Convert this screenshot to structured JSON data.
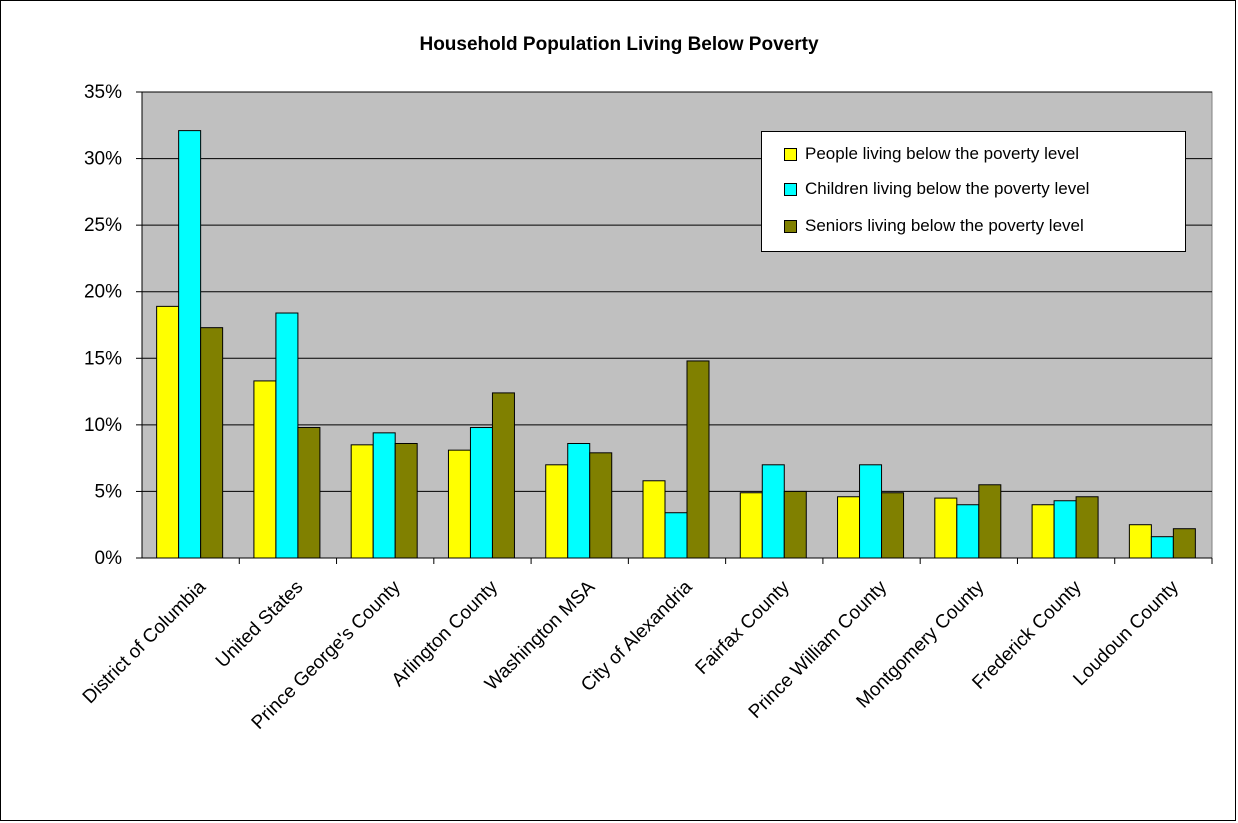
{
  "chart_data": {
    "type": "bar",
    "title": "Household Population Living Below Poverty",
    "xlabel": "",
    "ylabel": "",
    "ylim": [
      0,
      35
    ],
    "yticks": [
      "0%",
      "5%",
      "10%",
      "15%",
      "20%",
      "25%",
      "30%",
      "35%"
    ],
    "grid": true,
    "legend_position": "top-right",
    "categories": [
      "District of Columbia",
      "United States",
      "Prince George's County",
      "Arlington County",
      "Washington MSA",
      "City of Alexandria",
      "Fairfax County",
      "Prince William County",
      "Montgomery County",
      "Frederick County",
      "Loudoun County"
    ],
    "series": [
      {
        "name": "People living below  the poverty level",
        "color": "#ffff00",
        "values": [
          18.9,
          13.3,
          8.5,
          8.1,
          7.0,
          5.8,
          4.9,
          4.6,
          4.5,
          4.0,
          2.5
        ]
      },
      {
        "name": "Children living below  the poverty level",
        "color": "#00ffff",
        "values": [
          32.1,
          18.4,
          9.4,
          9.8,
          8.6,
          3.4,
          7.0,
          7.0,
          4.0,
          4.3,
          1.6
        ]
      },
      {
        "name": "Seniors living below  the poverty level",
        "color": "#808000",
        "values": [
          17.3,
          9.8,
          8.6,
          12.4,
          7.9,
          14.8,
          5.0,
          4.9,
          5.5,
          4.6,
          2.2
        ]
      }
    ],
    "plot_background": "#c0c0c0"
  }
}
